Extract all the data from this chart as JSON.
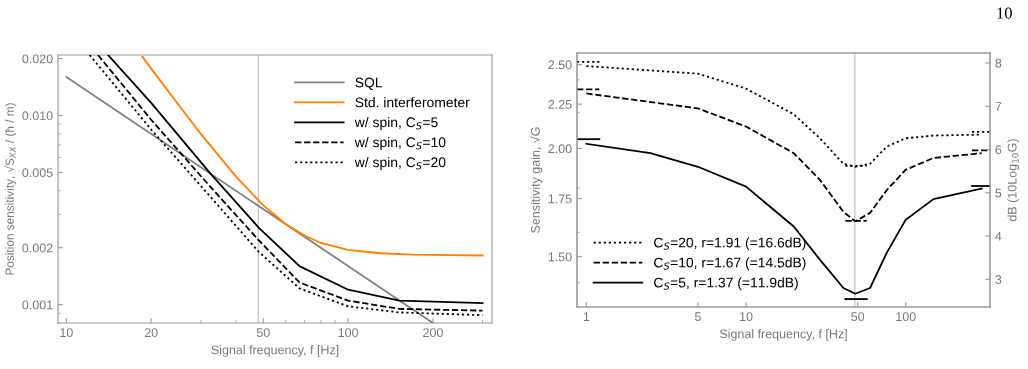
{
  "chart_data": [
    {
      "type": "line",
      "xlabel": "Signal frequency, f [Hz]",
      "ylabel": "Position sensitivity, √S$_{XX}$ / (ħ / m)",
      "log": "xy",
      "legend": "top right",
      "grid": false,
      "xlim": [
        9.34,
        324
      ],
      "xticks": [
        10,
        20,
        50,
        100,
        200
      ],
      "ylim": [
        0.0008,
        0.0209
      ],
      "yticks": [
        {
          "value": 0.02,
          "label": "0.020"
        },
        {
          "value": 0.01,
          "label": "0.010"
        },
        {
          "value": 0.005,
          "label": "0.005"
        },
        {
          "value": 0.002,
          "label": "0.002"
        },
        {
          "value": 0.001,
          "label": "0.001"
        }
      ],
      "ref_lines": [
        {
          "axis": "x",
          "value": 48,
          "color": "#c8c8c8",
          "line_style": "solid"
        }
      ],
      "series": [
        {
          "name": "SQL",
          "color": "#808080",
          "line_style": "solid",
          "x": [
            10,
            200
          ],
          "values": [
            0.016,
            0.0008
          ]
        },
        {
          "name": "Std. interferometer",
          "color": "#ff8000",
          "line_style": "solid",
          "x": [
            18.6,
            20,
            25,
            30,
            40,
            50,
            60,
            70,
            80,
            100,
            130,
            170,
            230,
            300
          ],
          "values": [
            0.0205,
            0.0177,
            0.0114,
            0.008,
            0.00475,
            0.00335,
            0.00267,
            0.00232,
            0.00212,
            0.00195,
            0.00187,
            0.00184,
            0.00183,
            0.00182
          ]
        },
        {
          "name": "w/ spin, C$_{S}$=5",
          "color": "#000000",
          "line_style": "solid",
          "x": [
            14.06,
            20,
            32.3,
            48.2,
            67.2,
            100,
            152,
            300
          ],
          "values": [
            0.0209,
            0.01166,
            0.00498,
            0.00255,
            0.0016,
            0.0012,
            0.00105,
            0.00102
          ]
        },
        {
          "name": "w/ spin, C$_{S}$=10",
          "color": "#000000",
          "line_style": "dashed",
          "x": [
            12.95,
            20,
            32.3,
            48.2,
            67.2,
            100,
            152,
            300
          ],
          "values": [
            0.0209,
            0.0095,
            0.00423,
            0.00219,
            0.00131,
            0.00105,
            0.00095,
            0.00093
          ]
        },
        {
          "name": "w/ spin, C$_{S}$=20",
          "color": "#000000",
          "line_style": "dotted",
          "x": [
            12.1,
            20,
            32.3,
            48.2,
            67.2,
            100,
            152,
            300
          ],
          "values": [
            0.0209,
            0.00843,
            0.00375,
            0.0019,
            0.00122,
            0.00098,
            0.00091,
            0.00088
          ]
        }
      ]
    },
    {
      "type": "line",
      "xlabel": "Signal frequency, f [Hz]",
      "ylabel": "Sensitivity gain, √G",
      "y2label": "dB (10Log$_{10}$G)",
      "log": "xy",
      "legend": "bottom left",
      "grid": false,
      "xlim": [
        0.874,
        337
      ],
      "xticks": [
        1,
        5,
        10,
        50,
        100
      ],
      "ylim": [
        1.312,
        2.578
      ],
      "yticks": [
        {
          "value": 2.5,
          "label": "2.50"
        },
        2.25,
        {
          "value": 2.0,
          "label": "2.00"
        },
        1.75,
        {
          "value": 1.5,
          "label": "1.50"
        }
      ],
      "y2lim": [
        2.36,
        8.23
      ],
      "y2ticks": [
        3,
        4,
        5,
        6,
        7,
        8
      ],
      "ref_lines": [
        {
          "axis": "x",
          "value": 48,
          "color": "#c8c8c8",
          "line_style": "solid"
        }
      ],
      "annotations": [
        "10"
      ],
      "series": [
        {
          "name": "C$_{S}$=20, r=1.91 (=16.6dB)",
          "color": "#000000",
          "line_style": "dotted",
          "x": [
            1,
            5,
            10,
            19.9,
            29,
            40.7,
            48.3,
            59.8,
            76,
            100,
            149,
            299
          ],
          "values": [
            2.49,
            2.44,
            2.345,
            2.19,
            2.055,
            1.92,
            1.905,
            1.92,
            2.01,
            2.055,
            2.07,
            2.075
          ]
        },
        {
          "name": "C$_{S}$=10, r=1.67 (=14.5dB)",
          "color": "#000000",
          "line_style": "dashed",
          "x": [
            1,
            5,
            10,
            19.9,
            29,
            40.7,
            48.3,
            59.8,
            76,
            100,
            149,
            299
          ],
          "values": [
            2.315,
            2.225,
            2.12,
            1.975,
            1.84,
            1.69,
            1.648,
            1.685,
            1.79,
            1.89,
            1.95,
            1.975
          ]
        },
        {
          "name": "C$_{S}$=5, r=1.37 (=11.9dB)",
          "color": "#000000",
          "line_style": "solid",
          "x": [
            1,
            2.52,
            5,
            10,
            19.9,
            29,
            40.7,
            48.3,
            59.8,
            76,
            100,
            149,
            299
          ],
          "values": [
            2.025,
            1.975,
            1.905,
            1.807,
            1.625,
            1.488,
            1.38,
            1.359,
            1.38,
            1.515,
            1.655,
            1.748,
            1.798
          ]
        },
        {
          "color": "#000000",
          "line_style": "dotted",
          "x": [
            0.874,
            1.206
          ],
          "values": [
            2.518,
            2.518
          ]
        },
        {
          "color": "#000000",
          "line_style": "dashed",
          "x": [
            0.874,
            1.206
          ],
          "values": [
            2.34,
            2.34
          ]
        },
        {
          "color": "#000000",
          "line_style": "solid",
          "x": [
            0.874,
            1.206
          ],
          "values": [
            2.05,
            2.05
          ]
        },
        {
          "color": "#000000",
          "line_style": "dotted",
          "x": [
            260,
            337
          ],
          "values": [
            2.09,
            2.09
          ]
        },
        {
          "color": "#000000",
          "line_style": "dashed",
          "x": [
            260,
            337
          ],
          "values": [
            1.99,
            1.99
          ]
        },
        {
          "color": "#000000",
          "line_style": "solid",
          "x": [
            260,
            337
          ],
          "values": [
            1.81,
            1.81
          ]
        },
        {
          "color": "#000000",
          "line_style": "dotted",
          "x": [
            41.9,
            57
          ],
          "values": [
            1.91,
            1.91
          ]
        },
        {
          "color": "#000000",
          "line_style": "dashed",
          "x": [
            41.9,
            57
          ],
          "values": [
            1.65,
            1.65
          ]
        },
        {
          "color": "#000000",
          "line_style": "solid",
          "x": [
            41.9,
            57
          ],
          "values": [
            1.34,
            1.34
          ]
        }
      ]
    }
  ]
}
